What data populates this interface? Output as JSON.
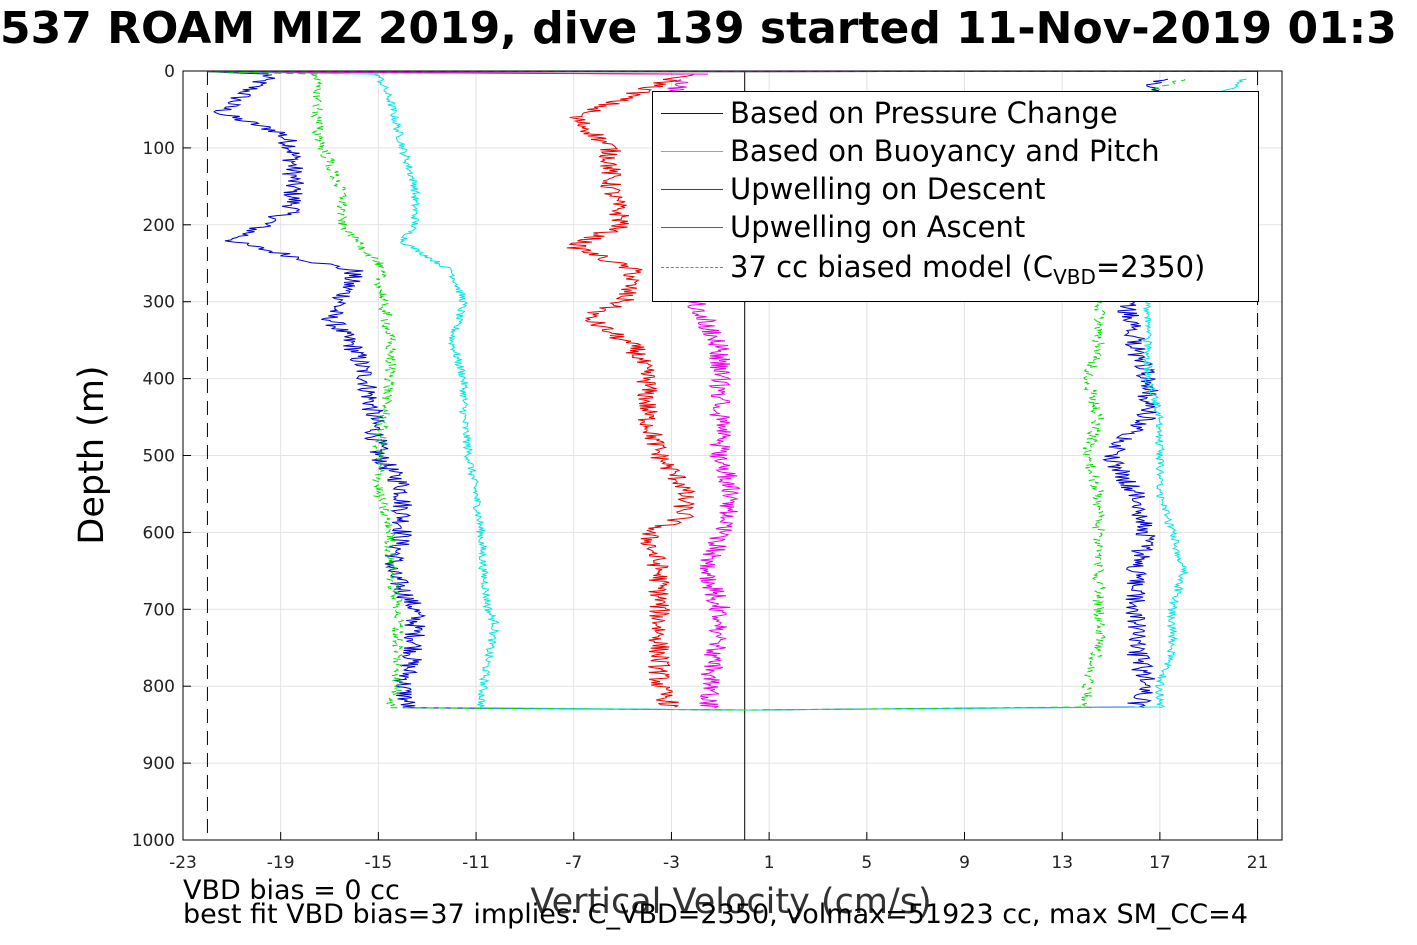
{
  "title": "537 ROAM MIZ 2019, dive 139 started 11-Nov-2019 01:3",
  "footer": {
    "line1": "VBD bias = 0 cc",
    "line2": "best fit VBD bias=37 implies: C_VBD=2350, volmax=51923 cc, max SM_CC=4"
  },
  "legend": {
    "items": [
      {
        "label": "Based on Pressure Change",
        "color": "#0000cc",
        "dash": false
      },
      {
        "label": "Based on Buoyancy and Pitch",
        "color": "#00e5e5",
        "dash": false
      },
      {
        "label": "Upwelling on Descent",
        "color": "#e60000",
        "dash": false
      },
      {
        "label": "Upwelling on Ascent",
        "color": "#e600e6",
        "dash": false
      }
    ],
    "model": {
      "prefix": "37 cc biased model (C",
      "sub": "VBD",
      "suffix": "=2350)",
      "color": "#00dd00"
    }
  },
  "chart_data": {
    "type": "line",
    "title": "537 ROAM MIZ 2019, dive 139 started 11-Nov-2019 01:3",
    "xlabel": "Vertical Velocity (cm/s)",
    "ylabel": "Depth (m)",
    "xlim": [
      -23,
      22
    ],
    "ylim": [
      0,
      1000
    ],
    "y_reversed": true,
    "grid": true,
    "legend_position": "top-right",
    "xticks": [
      -23,
      -19,
      -15,
      -11,
      -7,
      -3,
      1,
      5,
      9,
      13,
      17,
      21
    ],
    "yticks": [
      0,
      100,
      200,
      300,
      400,
      500,
      600,
      700,
      800,
      900,
      1000
    ],
    "reference_lines": {
      "vertical_solid_x": 0,
      "vertical_dashed_x": [
        -22,
        21
      ]
    },
    "series": [
      {
        "name": "Based on Pressure Change",
        "color": "#0000cc",
        "descent": {
          "depth": [
            5,
            30,
            55,
            80,
            100,
            140,
            180,
            222,
            260,
            300,
            320,
            360,
            400,
            450,
            500,
            540,
            600,
            650,
            700,
            750,
            800,
            828
          ],
          "velocity": [
            -19.5,
            -20.5,
            -21.5,
            -19,
            -18.5,
            -18.5,
            -18.5,
            -21,
            -16,
            -16.5,
            -17,
            -16,
            -15.5,
            -15.2,
            -15,
            -14,
            -14,
            -14.5,
            -13.5,
            -13.5,
            -14,
            -13.8
          ]
        },
        "ascent": {
          "depth": [
            828,
            800,
            750,
            700,
            650,
            600,
            550,
            500,
            450,
            400,
            360,
            330,
            300,
            50,
            10
          ],
          "velocity": [
            16,
            16.5,
            16,
            16,
            16,
            16.5,
            16,
            15,
            16.5,
            16.5,
            16,
            16,
            15.5,
            16,
            17
          ]
        }
      },
      {
        "name": "Based on Buoyancy and Pitch",
        "color": "#00e5e5",
        "descent": {
          "depth": [
            5,
            40,
            100,
            150,
            200,
            222,
            260,
            300,
            350,
            400,
            450,
            500,
            550,
            600,
            650,
            700,
            720,
            760,
            800,
            828
          ],
          "velocity": [
            -15,
            -14.5,
            -14,
            -13.5,
            -13.5,
            -14,
            -12,
            -11.5,
            -12,
            -11.5,
            -11.5,
            -11.3,
            -11,
            -10.8,
            -10.7,
            -10.5,
            -10.2,
            -10.5,
            -10.7,
            -10.8
          ]
        },
        "ascent": {
          "depth": [
            828,
            800,
            750,
            700,
            650,
            600,
            550,
            500,
            450,
            400,
            360,
            330,
            300,
            30,
            10
          ],
          "velocity": [
            17,
            17,
            17.5,
            17.5,
            18,
            17.5,
            17,
            17,
            17,
            16.5,
            16.5,
            16.5,
            16.5,
            19.5,
            20.5
          ]
        }
      },
      {
        "name": "Upwelling on Descent",
        "color": "#e60000",
        "descent": {
          "depth": [
            5,
            30,
            60,
            100,
            150,
            200,
            228,
            260,
            300,
            320,
            360,
            400,
            450,
            500,
            540,
            580,
            600,
            650,
            700,
            750,
            800,
            828
          ],
          "velocity": [
            -2.5,
            -4.5,
            -7,
            -5.5,
            -5.5,
            -5,
            -7,
            -4.5,
            -5,
            -6.5,
            -4.5,
            -4,
            -4,
            -3.5,
            -2.5,
            -2.5,
            -4,
            -3.5,
            -3.5,
            -3.5,
            -3.5,
            -3
          ]
        }
      },
      {
        "name": "Upwelling on Ascent",
        "color": "#e600e6",
        "ascent": {
          "depth": [
            828,
            800,
            750,
            700,
            650,
            600,
            550,
            500,
            450,
            400,
            360,
            330,
            310,
            30,
            10
          ],
          "velocity": [
            -1.5,
            -1.5,
            -1.2,
            -1,
            -1.5,
            -1,
            -0.5,
            -1,
            -1,
            -1,
            -1,
            -1.5,
            -2,
            -3,
            -2.5
          ]
        }
      },
      {
        "name": "37 cc biased model (C_VBD=2350)",
        "color": "#00dd00",
        "dashed": true,
        "descent": {
          "depth": [
            5,
            30,
            80,
            120,
            160,
            200,
            250,
            300,
            350,
            400,
            450,
            500,
            550,
            600,
            650,
            700,
            750,
            800,
            828
          ],
          "velocity": [
            -17.5,
            -17.5,
            -17.5,
            -17,
            -16.5,
            -16.5,
            -15,
            -14.8,
            -14.5,
            -14.5,
            -14.8,
            -15,
            -15,
            -14.5,
            -14.5,
            -14.2,
            -14.2,
            -14.2,
            -14.5
          ]
        },
        "ascent": {
          "depth": [
            828,
            800,
            750,
            700,
            650,
            600,
            550,
            500,
            450,
            400,
            360,
            310,
            30,
            10
          ],
          "velocity": [
            14,
            14,
            14.5,
            14.5,
            14.5,
            14.5,
            14.5,
            14,
            14.5,
            14,
            14.5,
            14.5,
            16.5,
            18
          ]
        }
      }
    ],
    "bottom_transition_depth": 830
  }
}
